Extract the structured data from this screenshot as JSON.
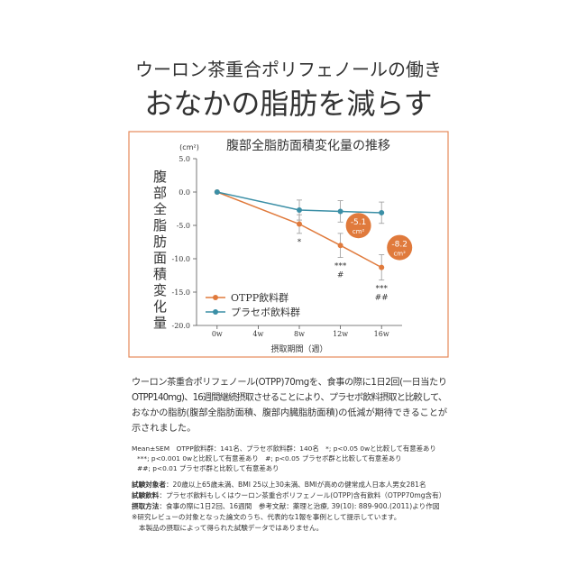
{
  "header": {
    "subtitle": "ウーロン茶重合ポリフェノールの働き",
    "title": "おなかの脂肪を減らす"
  },
  "chart_data": {
    "type": "line",
    "title": "腹部全脂肪面積変化量の推移",
    "y_label": "腹部全脂肪面積変化量",
    "y_unit": "(cm²)",
    "x_label": "摂取期間（週）",
    "x": [
      0,
      8,
      12,
      16
    ],
    "series": [
      {
        "name": "OTPP飲料群",
        "color": "#e07a3c",
        "values": [
          0,
          -4.8,
          -8.0,
          -11.3
        ],
        "errors": [
          0,
          1.4,
          1.8,
          1.9
        ]
      },
      {
        "name": "プラセボ飲料群",
        "color": "#3b8fa6",
        "values": [
          0,
          -2.7,
          -2.9,
          -3.1
        ],
        "errors": [
          0,
          1.5,
          1.6,
          1.6
        ]
      }
    ],
    "xlim": [
      -2,
      18
    ],
    "xticks": [
      {
        "value": 0,
        "label": "0w"
      },
      {
        "value": 4,
        "label": "4w"
      },
      {
        "value": 8,
        "label": "8w"
      },
      {
        "value": 12,
        "label": "12w"
      },
      {
        "value": 16,
        "label": "16w"
      }
    ],
    "ylim": [
      -20,
      5
    ],
    "yticks": [
      {
        "value": 5,
        "label": "5.0"
      },
      {
        "value": 0,
        "label": "0.0"
      },
      {
        "value": -5,
        "label": "-5.0"
      },
      {
        "value": -10,
        "label": "-10.0"
      },
      {
        "value": -15,
        "label": "-15.0"
      },
      {
        "value": -20,
        "label": "-20.0"
      }
    ],
    "legend": "lower left",
    "significance": [
      {
        "x": 8,
        "lines": [
          "*"
        ]
      },
      {
        "x": 12,
        "lines": [
          "***",
          "#"
        ]
      },
      {
        "x": 16,
        "lines": [
          "***",
          "##"
        ]
      }
    ],
    "callouts": [
      {
        "x": 12,
        "text": "-5.1",
        "unit": "cm²"
      },
      {
        "x": 16,
        "text": "-8.2",
        "unit": "cm²"
      }
    ]
  },
  "body": [
    "ウーロン茶重合ポリフェノール(OTPP)70mgを、食事の際に1日2回(一日当たり",
    "OTPP140mg)、16週間継続摂取させることにより、プラセボ飲料摂取と比較して、",
    "おなかの脂肪(腹部全脂肪面積、腹部内臓脂肪面積)の低減が期待できることが",
    "示されました。"
  ],
  "stats": [
    "Mean±SEM　OTPP飲料群：141名、プラセボ飲料群：140名　*; p<0.05 0wと比較して有意差あり",
    "***; p<0.001 0wと比較して有意差あり　#; p<0.05 プラセボ群と比較して有意差あり",
    "##; p<0.01 プラセボ群と比較して有意差あり"
  ],
  "details": [
    {
      "label": "試験対象者",
      "text": "：20歳以上65歳未満、BMI 25以上30未満、BMIが高めの健常成人日本人男女281名"
    },
    {
      "label": "試験飲料",
      "text": "：プラセボ飲料もしくはウーロン茶重合ポリフェノール(OTPP)含有飲料（OTPP70mg含有）"
    },
    {
      "label": "摂取方法",
      "text": "：食事の際に1日2回、16週間　参考文献：薬理と治療, 39(10): 889-900.(2011)より作図"
    }
  ],
  "disclaimers": [
    "※研究レビューの対象となった論文のうち、代表的な1報を事例として提示しています。",
    "本製品の摂取によって得られた試験データではありません。"
  ]
}
